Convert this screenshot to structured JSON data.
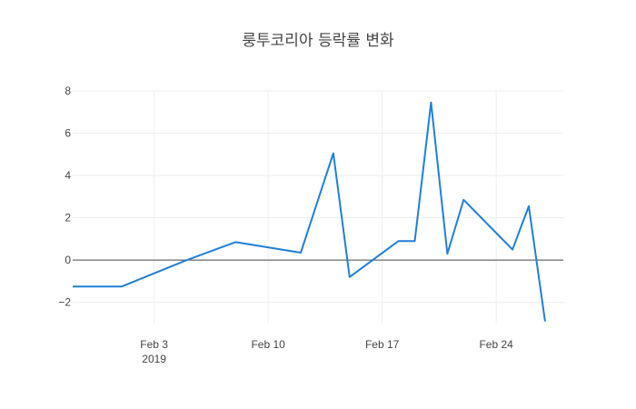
{
  "chart_data": {
    "type": "line",
    "title": "룽투코리아 등락률 변화",
    "xlabel": "",
    "ylabel": "",
    "x_axis_type": "date",
    "xlim": [
      "2019-01-29",
      "2019-02-26"
    ],
    "ylim": [
      -3.0,
      8.0
    ],
    "x_ticks": [
      {
        "date": "2019-02-03",
        "label": "Feb 3",
        "sublabel": "2019"
      },
      {
        "date": "2019-02-10",
        "label": "Feb 10",
        "sublabel": ""
      },
      {
        "date": "2019-02-17",
        "label": "Feb 17",
        "sublabel": ""
      },
      {
        "date": "2019-02-24",
        "label": "Feb 24",
        "sublabel": ""
      }
    ],
    "y_ticks": [
      8,
      6,
      4,
      2,
      0,
      -2
    ],
    "y_tick_labels": [
      "8",
      "6",
      "4",
      "2",
      "0",
      "−2"
    ],
    "grid": true,
    "zero_line": true,
    "series": [
      {
        "color": "#1f7fd9",
        "x": [
          "2019-01-29",
          "2019-02-01",
          "2019-02-05",
          "2019-02-08",
          "2019-02-12",
          "2019-02-13",
          "2019-02-14",
          "2019-02-15",
          "2019-02-18",
          "2019-02-19",
          "2019-02-20",
          "2019-02-21",
          "2019-02-22",
          "2019-02-25",
          "2019-02-26",
          "2019-02-27"
        ],
        "y": [
          -1.25,
          -1.25,
          0.0,
          0.85,
          0.35,
          2.7,
          5.05,
          -0.8,
          0.9,
          0.9,
          7.45,
          0.3,
          2.85,
          0.5,
          2.55,
          -2.9
        ]
      }
    ]
  }
}
